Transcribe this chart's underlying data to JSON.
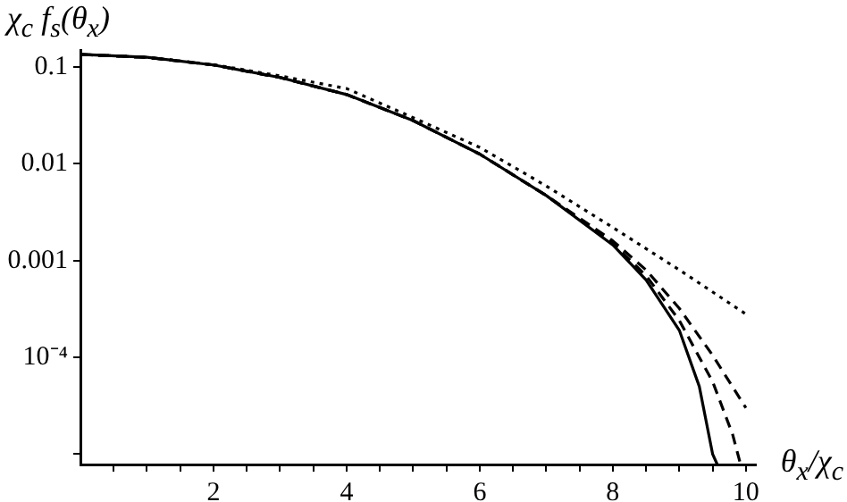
{
  "chart_data": {
    "type": "line",
    "xlabel": "θ$_{x}$/χ$_{c}$",
    "ylabel": "χ$_{c}$ f$_{s}$(θ$_{x}$)",
    "log": "y",
    "grid": false,
    "legend": false,
    "marker": "none",
    "xlim": [
      0,
      10.15
    ],
    "xticks": [
      {
        "value": 0.5,
        "label": null
      },
      {
        "value": 1,
        "label": null
      },
      {
        "value": 1.5,
        "label": null
      },
      2,
      {
        "value": 2.5,
        "label": null
      },
      {
        "value": 3,
        "label": null
      },
      {
        "value": 3.5,
        "label": null
      },
      4,
      {
        "value": 4.5,
        "label": null
      },
      {
        "value": 5,
        "label": null
      },
      {
        "value": 5.5,
        "label": null
      },
      6,
      {
        "value": 6.5,
        "label": null
      },
      {
        "value": 7,
        "label": null
      },
      {
        "value": 7.5,
        "label": null
      },
      8,
      {
        "value": 8.5,
        "label": null
      },
      {
        "value": 9,
        "label": null
      },
      {
        "value": 9.5,
        "label": null
      },
      10
    ],
    "ylim": [
      7.8e-06,
      0.15
    ],
    "yticks": [
      {
        "value": 1e-05,
        "label": null
      },
      {
        "value": 0.0001,
        "label": "10⁻⁴"
      },
      0.001,
      0.01,
      0.1
    ],
    "series": [
      {
        "color": "#000000",
        "line_style": "solid",
        "x": [
          0,
          1,
          2,
          3,
          4,
          5,
          6,
          7,
          8,
          8.5,
          9,
          9.3,
          9.5,
          9.57
        ],
        "values": [
          0.135,
          0.126,
          0.105,
          0.078,
          0.052,
          0.028,
          0.0126,
          0.0047,
          0.00145,
          0.00063,
          0.00019,
          5e-05,
          1e-05,
          7.8e-06
        ]
      },
      {
        "color": "#000000",
        "line_style": "dashed",
        "x": [
          0,
          1,
          2,
          3,
          4,
          5,
          6,
          7,
          8,
          8.5,
          9,
          9.5,
          9.8,
          9.92
        ],
        "values": [
          0.135,
          0.126,
          0.105,
          0.078,
          0.052,
          0.028,
          0.0126,
          0.0047,
          0.0015,
          0.0007,
          0.00024,
          5.6e-05,
          1.6e-05,
          7.8e-06
        ]
      },
      {
        "color": "#000000",
        "line_style": "dashed",
        "x": [
          0,
          1,
          2,
          3,
          4,
          5,
          6,
          7,
          8,
          8.5,
          9,
          9.5,
          10
        ],
        "values": [
          0.135,
          0.126,
          0.105,
          0.078,
          0.052,
          0.028,
          0.0126,
          0.0047,
          0.0016,
          0.0008,
          0.00032,
          0.000105,
          3e-05
        ]
      },
      {
        "color": "#000000",
        "line_style": "dotted",
        "x": [
          0,
          1,
          2,
          3,
          4,
          5,
          6,
          7,
          8,
          9,
          10
        ],
        "values": [
          0.135,
          0.126,
          0.106,
          0.081,
          0.06,
          0.03,
          0.0148,
          0.0059,
          0.0022,
          0.0008,
          0.00028
        ]
      }
    ]
  }
}
